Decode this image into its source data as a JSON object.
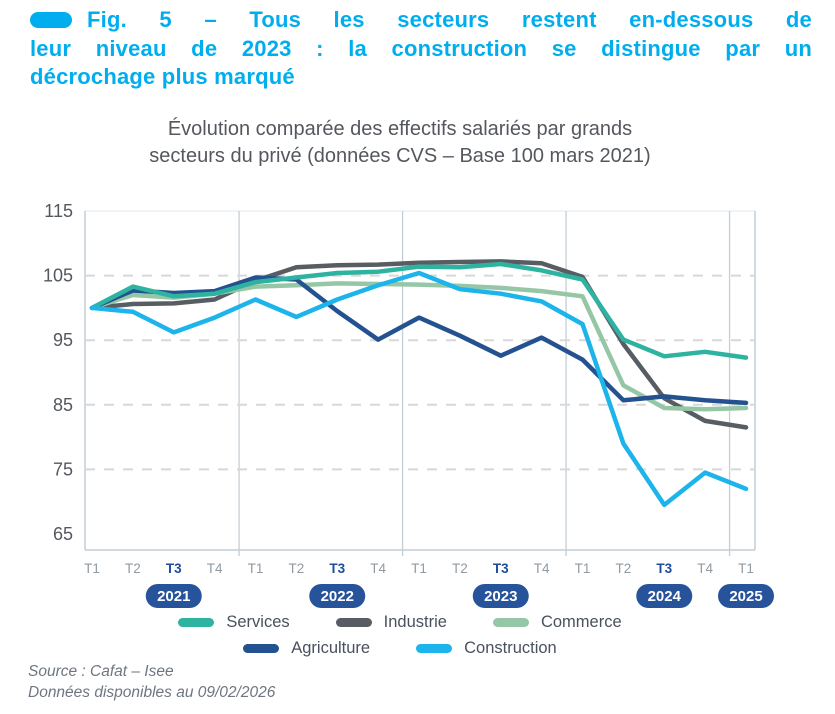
{
  "figure": {
    "title_lines": [
      "Fig. 5 – Tous les secteurs restent en-dessous de",
      "leur niveau de 2023 : la construction se distingue par un",
      "décrochage plus marqué"
    ],
    "subtitle_lines": [
      "Évolution comparée des effectifs salariés par grands",
      "secteurs du privé (données CVS – Base 100 mars 2021)"
    ],
    "source_lines": [
      "Source : Cafat – Isee",
      "Données disponibles au 09/02/2026"
    ]
  },
  "colors": {
    "accent_cyan": "#00aeef",
    "badge_navy": "#27539b",
    "t3_navy": "#1c4c9e",
    "axis_text": "#54585e",
    "quarter_text": "#9199a1",
    "legend_text": "#49515e",
    "source_text": "#6e7680",
    "grid_dashed": "#d8d8d8",
    "frame": "#c3ced5",
    "top_border": "#e3e9ec"
  },
  "chart_data": {
    "type": "line",
    "title": "Évolution comparée des effectifs salariés par grands secteurs du privé (données CVS – Base 100 mars 2021)",
    "base_note": "Base 100 mars 2021",
    "x_labels": [
      "T1",
      "T2",
      "T3",
      "T4",
      "T1",
      "T2",
      "T3",
      "T4",
      "T1",
      "T2",
      "T3",
      "T4",
      "T1",
      "T2",
      "T3",
      "T4",
      "T1"
    ],
    "bold_x_label": "T3",
    "years": [
      "2021",
      "2022",
      "2023",
      "2024",
      "2025"
    ],
    "year_anchor_indices": [
      2,
      6,
      10,
      14,
      16
    ],
    "ylim": [
      65,
      115
    ],
    "yticks": [
      115,
      105,
      95,
      85,
      75,
      65
    ],
    "dashed_gridlines": [
      105,
      95,
      85,
      75
    ],
    "legend_position": "bottom",
    "series": [
      {
        "name": "Services",
        "color": "#2fb3a1",
        "values": [
          100,
          103.3,
          101.8,
          102.2,
          104.0,
          104.7,
          105.4,
          105.6,
          106.4,
          106.3,
          106.8,
          105.8,
          104.4,
          95.1,
          92.5,
          93.2,
          92.3
        ]
      },
      {
        "name": "Industrie",
        "color": "#585d63",
        "values": [
          100,
          100.6,
          100.7,
          101.3,
          104.2,
          106.3,
          106.6,
          106.7,
          107.0,
          107.1,
          107.2,
          106.9,
          104.8,
          94.4,
          86.0,
          82.5,
          81.5
        ]
      },
      {
        "name": "Commerce",
        "color": "#95c7a6",
        "values": [
          100,
          102.0,
          101.6,
          102.2,
          103.3,
          103.5,
          103.8,
          103.7,
          103.6,
          103.4,
          103.1,
          102.6,
          101.8,
          88.0,
          84.5,
          84.3,
          84.5
        ]
      },
      {
        "name": "Agriculture",
        "color": "#24518f",
        "values": [
          100,
          102.7,
          102.3,
          102.6,
          104.7,
          104.4,
          99.5,
          95.1,
          98.5,
          95.7,
          92.6,
          95.4,
          92.0,
          85.7,
          86.3,
          85.7,
          85.3
        ]
      },
      {
        "name": "Construction",
        "color": "#1cb4ea",
        "values": [
          100,
          99.4,
          96.2,
          98.5,
          101.3,
          98.6,
          101.3,
          103.5,
          105.4,
          102.9,
          102.2,
          101.0,
          97.5,
          79.0,
          69.5,
          74.5,
          72.0
        ]
      }
    ],
    "draw_order": [
      "Industrie",
      "Commerce",
      "Agriculture",
      "Services",
      "Construction"
    ],
    "legend_rows": [
      [
        "Services",
        "Industrie",
        "Commerce"
      ],
      [
        "Agriculture",
        "Construction"
      ]
    ]
  }
}
